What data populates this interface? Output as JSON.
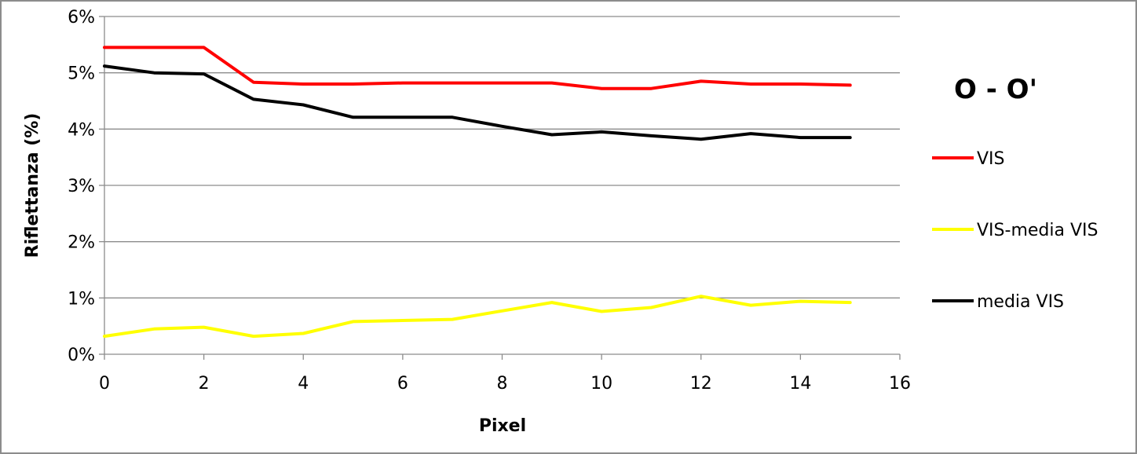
{
  "chart_data": {
    "type": "line",
    "title": "O - O'",
    "xlabel": "Pixel",
    "ylabel": "Riflettanza (%)",
    "xlim": [
      0,
      16
    ],
    "ylim": [
      0,
      6
    ],
    "x_ticks": [
      "0",
      "2",
      "4",
      "6",
      "8",
      "10",
      "12",
      "14",
      "16"
    ],
    "y_ticks": [
      "0%",
      "1%",
      "2%",
      "3%",
      "4%",
      "5%",
      "6%"
    ],
    "grid": "horizontal",
    "legend_position": "right",
    "x": [
      0,
      1,
      2,
      3,
      4,
      5,
      6,
      7,
      8,
      9,
      10,
      11,
      12,
      13,
      14,
      15
    ],
    "series": [
      {
        "name": "VIS",
        "color": "#ff0000",
        "values": [
          5.45,
          5.45,
          5.45,
          4.83,
          4.8,
          4.8,
          4.82,
          4.82,
          4.82,
          4.82,
          4.72,
          4.72,
          4.85,
          4.8,
          4.8,
          4.78
        ]
      },
      {
        "name": "VIS-media VIS",
        "color": "#ffff00",
        "values": [
          0.32,
          0.45,
          0.48,
          0.32,
          0.37,
          0.58,
          0.6,
          0.62,
          0.77,
          0.92,
          0.76,
          0.83,
          1.03,
          0.87,
          0.94,
          0.92
        ]
      },
      {
        "name": "media VIS",
        "color": "#000000",
        "values": [
          5.12,
          5.0,
          4.98,
          4.53,
          4.43,
          4.21,
          4.21,
          4.21,
          4.05,
          3.9,
          3.95,
          3.88,
          3.82,
          3.92,
          3.85,
          3.85
        ]
      }
    ]
  }
}
